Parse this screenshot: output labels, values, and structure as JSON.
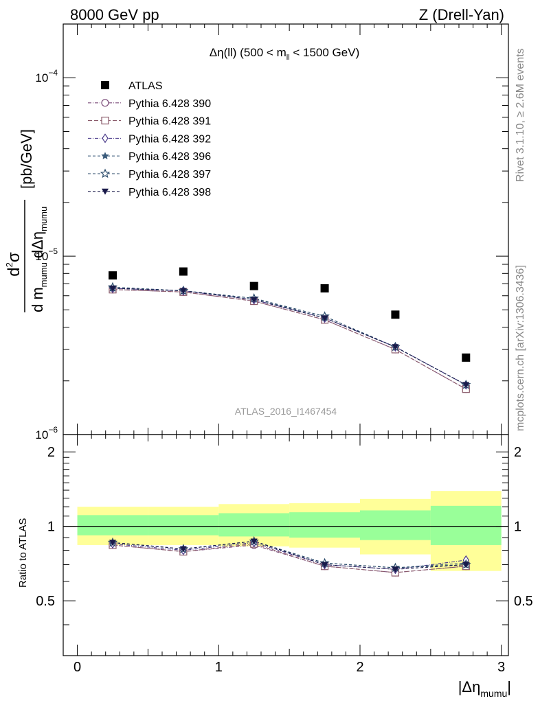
{
  "header": {
    "energy_label": "8000 GeV pp",
    "process_label": "Z (Drell-Yan)",
    "side_rivet": "Rivet 3.1.10, ≥ 2.6M events",
    "side_mcplots": "mcplots.cern.ch [arXiv:1306.3436]",
    "watermark": "ATLAS_2016_I1467454"
  },
  "plot_title": {
    "main": "Δη(ll) (500 < m",
    "sub": "ll",
    "tail": " < 1500 GeV)"
  },
  "yaxis_main": {
    "num_d": "d",
    "num_exp": "2",
    "num_sigma": "σ",
    "den_main": "d m",
    "den_sub1": "mumu",
    "den_mid": " dΔη",
    "den_sub2": "mumu",
    "unit": "[pb/GeV]",
    "ticks": [
      {
        "base": "10",
        "exp": "−4",
        "value": 0.0001
      },
      {
        "base": "10",
        "exp": "−5",
        "value": 1e-05
      },
      {
        "base": "10",
        "exp": "−6",
        "value": 1e-06
      }
    ]
  },
  "yaxis_ratio": {
    "label": "Ratio to ATLAS",
    "ticks": [
      "2",
      "1",
      "0.5"
    ]
  },
  "xaxis": {
    "ticks": [
      "0",
      "1",
      "2",
      "3"
    ],
    "label_main": "|Δη",
    "label_sub": "mumu",
    "label_tail": "|"
  },
  "legend": {
    "placement": "top-left",
    "entries": [
      {
        "label": "ATLAS",
        "marker": "filled-square",
        "color": "#000000"
      },
      {
        "label": "Pythia 6.428 390",
        "marker": "open-circle",
        "color": "#7a4a78"
      },
      {
        "label": "Pythia 6.428 391",
        "marker": "open-square",
        "color": "#8a5a6a"
      },
      {
        "label": "Pythia 6.428 392",
        "marker": "open-diamond",
        "color": "#4a3a8a"
      },
      {
        "label": "Pythia 6.428 396",
        "marker": "filled-star",
        "color": "#3a5a7a"
      },
      {
        "label": "Pythia 6.428 397",
        "marker": "open-star",
        "color": "#2a4a6a"
      },
      {
        "label": "Pythia 6.428 398",
        "marker": "filled-triangle-down",
        "color": "#1a1a4a"
      }
    ]
  },
  "chart_data": {
    "type": "scatter",
    "x": [
      0.25,
      0.75,
      1.25,
      1.75,
      2.25,
      2.75
    ],
    "x_edges": [
      0,
      0.5,
      1,
      1.5,
      2,
      2.5,
      3
    ],
    "xlim": [
      -0.1,
      3.05
    ],
    "ylim": [
      1e-06,
      0.0002
    ],
    "yscale": "log",
    "ratio_ylim": [
      0.3,
      2.35
    ],
    "ratio_yscale": "log",
    "series": [
      {
        "name": "ATLAS",
        "values": [
          7.8e-06,
          8.2e-06,
          6.8e-06,
          6.6e-06,
          4.7e-06,
          2.7e-06
        ]
      },
      {
        "name": "Pythia 6.428 390",
        "values": [
          6.5e-06,
          6.3e-06,
          5.6e-06,
          4.4e-06,
          3e-06,
          1.8e-06
        ]
      },
      {
        "name": "Pythia 6.428 391",
        "values": [
          6.5e-06,
          6.3e-06,
          5.6e-06,
          4.4e-06,
          3e-06,
          1.8e-06
        ]
      },
      {
        "name": "Pythia 6.428 392",
        "values": [
          6.6e-06,
          6.4e-06,
          5.7e-06,
          4.5e-06,
          3.1e-06,
          1.9e-06
        ]
      },
      {
        "name": "Pythia 6.428 396",
        "values": [
          6.6e-06,
          6.4e-06,
          5.8e-06,
          4.5e-06,
          3.1e-06,
          1.9e-06
        ]
      },
      {
        "name": "Pythia 6.428 397",
        "values": [
          6.7e-06,
          6.4e-06,
          5.8e-06,
          4.6e-06,
          3.1e-06,
          1.9e-06
        ]
      },
      {
        "name": "Pythia 6.428 398",
        "values": [
          6.6e-06,
          6.4e-06,
          5.7e-06,
          4.5e-06,
          3.1e-06,
          1.9e-06
        ]
      }
    ],
    "ratio_series": [
      {
        "name": "Pythia 6.428 390",
        "values": [
          0.84,
          0.79,
          0.84,
          0.69,
          0.65,
          0.69
        ]
      },
      {
        "name": "Pythia 6.428 391",
        "values": [
          0.84,
          0.79,
          0.85,
          0.69,
          0.65,
          0.69
        ]
      },
      {
        "name": "Pythia 6.428 392",
        "values": [
          0.85,
          0.8,
          0.86,
          0.7,
          0.67,
          0.73
        ]
      },
      {
        "name": "Pythia 6.428 396",
        "values": [
          0.86,
          0.81,
          0.87,
          0.71,
          0.68,
          0.71
        ]
      },
      {
        "name": "Pythia 6.428 397",
        "values": [
          0.86,
          0.81,
          0.87,
          0.71,
          0.68,
          0.7
        ]
      },
      {
        "name": "Pythia 6.428 398",
        "values": [
          0.86,
          0.81,
          0.87,
          0.7,
          0.67,
          0.7
        ]
      }
    ],
    "band_inner": [
      [
        0.92,
        1.11
      ],
      [
        0.92,
        1.11
      ],
      [
        0.91,
        1.13
      ],
      [
        0.9,
        1.14
      ],
      [
        0.88,
        1.16
      ],
      [
        0.84,
        1.21
      ]
    ],
    "band_outer": [
      [
        0.84,
        1.2
      ],
      [
        0.84,
        1.2
      ],
      [
        0.83,
        1.23
      ],
      [
        0.82,
        1.24
      ],
      [
        0.77,
        1.29
      ],
      [
        0.66,
        1.39
      ]
    ],
    "band_inner_color": "#99ff99",
    "band_outer_color": "#ffff99"
  }
}
